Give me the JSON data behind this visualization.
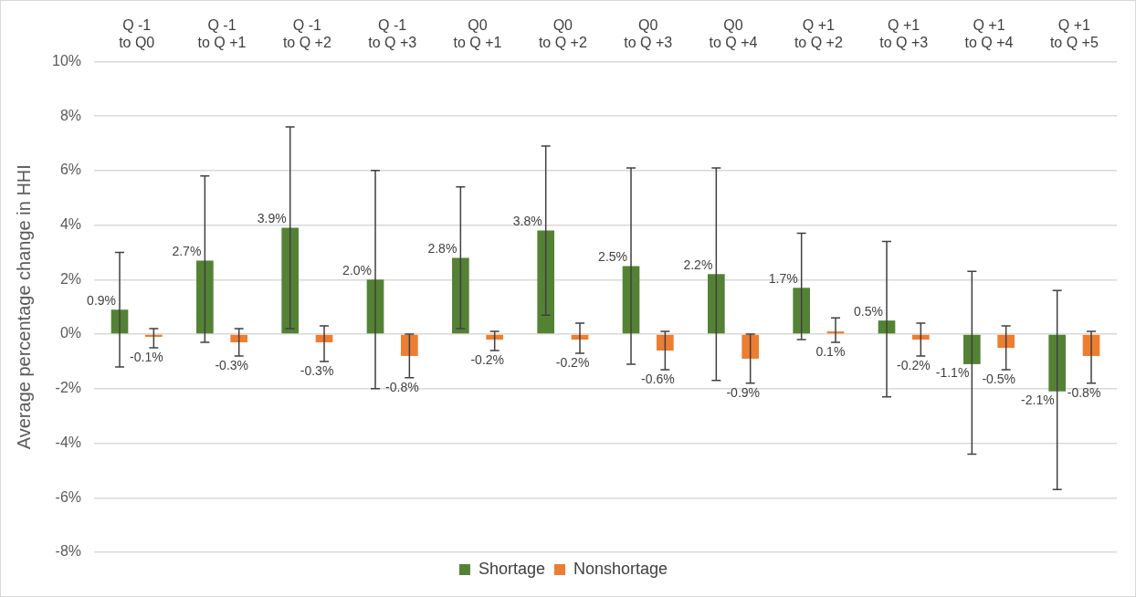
{
  "chart_data": {
    "type": "bar",
    "categories": [
      "Q -1\nto Q0",
      "Q -1\nto Q +1",
      "Q -1\nto Q +2",
      "Q -1\nto Q +3",
      "Q0\nto Q +1",
      "Q0\nto Q +2",
      "Q0\nto Q +3",
      "Q0\nto Q +4",
      "Q +1\nto Q +2",
      "Q +1\nto Q +3",
      "Q +1\nto Q +4",
      "Q +1\nto Q +5"
    ],
    "series": [
      {
        "name": "Shortage",
        "color": "#548235",
        "values": [
          0.9,
          2.7,
          3.9,
          2.0,
          2.8,
          3.8,
          2.5,
          2.2,
          1.7,
          0.5,
          -1.1,
          -2.1
        ],
        "value_labels": [
          "0.9%",
          "2.7%",
          "3.9%",
          "2.0%",
          "2.8%",
          "3.8%",
          "2.5%",
          "2.2%",
          "1.7%",
          "0.5%",
          "-1.1%",
          "-2.1%"
        ],
        "errors": [
          [
            -1.2,
            3.0
          ],
          [
            -0.3,
            5.8
          ],
          [
            0.2,
            7.6
          ],
          [
            -2.0,
            6.0
          ],
          [
            0.2,
            5.4
          ],
          [
            0.7,
            6.9
          ],
          [
            -1.1,
            6.1
          ],
          [
            -1.7,
            6.1
          ],
          [
            -0.2,
            3.7
          ],
          [
            -2.3,
            3.4
          ],
          [
            -4.4,
            2.3
          ],
          [
            -5.7,
            1.6
          ]
        ]
      },
      {
        "name": "Nonshortage",
        "color": "#ed7d31",
        "values": [
          -0.1,
          -0.3,
          -0.3,
          -0.8,
          -0.2,
          -0.2,
          -0.6,
          -0.9,
          0.1,
          -0.2,
          -0.5,
          -0.8
        ],
        "value_labels": [
          "-0.1%",
          "-0.3%",
          "-0.3%",
          "-0.8%",
          "-0.2%",
          "-0.2%",
          "-0.6%",
          "-0.9%",
          "0.1%",
          "-0.2%",
          "-0.5%",
          "-0.8%"
        ],
        "errors": [
          [
            -0.5,
            0.2
          ],
          [
            -0.8,
            0.2
          ],
          [
            -1.0,
            0.3
          ],
          [
            -1.6,
            0.0
          ],
          [
            -0.6,
            0.1
          ],
          [
            -0.7,
            0.4
          ],
          [
            -1.3,
            0.1
          ],
          [
            -1.8,
            0.0
          ],
          [
            -0.3,
            0.6
          ],
          [
            -0.8,
            0.4
          ],
          [
            -1.3,
            0.3
          ],
          [
            -1.8,
            0.1
          ]
        ]
      }
    ],
    "ylabel": "Average percentage change in HHI",
    "ylim": [
      -8,
      10
    ],
    "yticks": [
      {
        "value": -8,
        "label": "-8%"
      },
      {
        "value": -6,
        "label": "-6%"
      },
      {
        "value": -4,
        "label": "-4%"
      },
      {
        "value": -2,
        "label": "-2%"
      },
      {
        "value": 0,
        "label": "0%"
      },
      {
        "value": 2,
        "label": "2%"
      },
      {
        "value": 4,
        "label": "4%"
      },
      {
        "value": 6,
        "label": "6%"
      },
      {
        "value": 8,
        "label": "8%"
      },
      {
        "value": 10,
        "label": "10%"
      }
    ],
    "grid": "y",
    "legend": "bottom"
  }
}
